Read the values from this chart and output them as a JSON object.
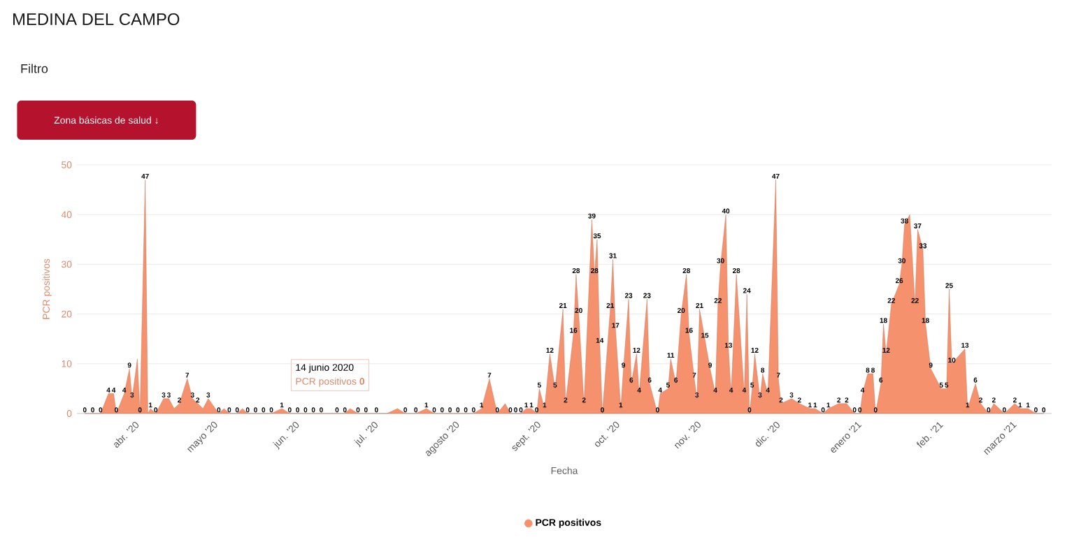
{
  "chart_data": {
    "type": "area",
    "title": "MEDINA DEL CAMPO",
    "xlabel": "Fecha",
    "ylabel": "PCR positivos",
    "annotations": [
      "Filtro",
      "Zona básicas de salud ↓",
      "14 junio 2020",
      "PCR positivos **0**"
    ],
    "x": [
      "2020-03-13",
      "2020-03-16",
      "2020-03-19",
      "2020-03-22",
      "2020-03-24",
      "2020-03-25",
      "2020-03-28",
      "2020-03-30",
      "2020-03-31",
      "2020-04-02",
      "2020-04-03",
      "2020-04-05",
      "2020-04-06",
      "2020-04-07",
      "2020-04-09",
      "2020-04-12",
      "2020-04-14",
      "2020-04-16",
      "2020-04-18",
      "2020-04-21",
      "2020-04-23",
      "2020-04-25",
      "2020-04-27",
      "2020-04-29",
      "2020-05-03",
      "2020-05-05",
      "2020-05-07",
      "2020-05-10",
      "2020-05-12",
      "2020-05-14",
      "2020-05-17",
      "2020-05-20",
      "2020-05-23",
      "2020-05-27",
      "2020-05-30",
      "2020-06-02",
      "2020-06-05",
      "2020-06-08",
      "2020-06-11",
      "2020-06-14",
      "2020-06-17",
      "2020-06-20",
      "2020-06-22",
      "2020-06-25",
      "2020-06-28",
      "2020-07-02",
      "2020-07-06",
      "2020-07-10",
      "2020-07-13",
      "2020-07-17",
      "2020-07-21",
      "2020-07-24",
      "2020-07-27",
      "2020-07-30",
      "2020-08-02",
      "2020-08-05",
      "2020-08-08",
      "2020-08-11",
      "2020-08-14",
      "2020-08-17",
      "2020-08-20",
      "2020-08-22",
      "2020-08-24",
      "2020-08-26",
      "2020-08-28",
      "2020-08-30",
      "2020-09-01",
      "2020-09-02",
      "2020-09-04",
      "2020-09-06",
      "2020-09-08",
      "2020-09-11",
      "2020-09-12",
      "2020-09-15",
      "2020-09-16",
      "2020-09-17",
      "2020-09-19",
      "2020-09-22",
      "2020-09-23",
      "2020-09-24",
      "2020-09-25",
      "2020-09-26",
      "2020-09-29",
      "2020-09-30",
      "2020-10-01",
      "2020-10-03",
      "2020-10-04",
      "2020-10-06",
      "2020-10-07",
      "2020-10-09",
      "2020-10-10",
      "2020-10-13",
      "2020-10-14",
      "2020-10-17",
      "2020-10-18",
      "2020-10-21",
      "2020-10-22",
      "2020-10-24",
      "2020-10-26",
      "2020-10-28",
      "2020-10-29",
      "2020-10-31",
      "2020-11-01",
      "2020-11-02",
      "2020-11-04",
      "2020-11-06",
      "2020-11-08",
      "2020-11-09",
      "2020-11-10",
      "2020-11-12",
      "2020-11-13",
      "2020-11-14",
      "2020-11-16",
      "2020-11-19",
      "2020-11-20",
      "2020-11-21",
      "2020-11-22",
      "2020-11-23",
      "2020-11-25",
      "2020-11-26",
      "2020-11-28",
      "2020-12-01",
      "2020-12-02",
      "2020-12-03",
      "2020-12-07",
      "2020-12-10",
      "2020-12-14",
      "2020-12-16",
      "2020-12-19",
      "2020-12-21",
      "2020-12-25",
      "2020-12-28",
      "2020-12-31",
      "2021-01-02",
      "2021-01-03",
      "2021-01-05",
      "2021-01-07",
      "2021-01-08",
      "2021-01-10",
      "2021-01-11",
      "2021-01-12",
      "2021-01-14",
      "2021-01-17",
      "2021-01-18",
      "2021-01-19",
      "2021-01-21",
      "2021-01-23",
      "2021-01-24",
      "2021-01-26",
      "2021-01-27",
      "2021-01-29",
      "2021-02-02",
      "2021-02-04",
      "2021-02-05",
      "2021-02-06",
      "2021-02-11",
      "2021-02-12",
      "2021-02-15",
      "2021-02-17",
      "2021-02-20",
      "2021-02-22",
      "2021-02-26",
      "2021-03-02",
      "2021-03-04",
      "2021-03-07",
      "2021-03-10",
      "2021-03-13"
    ],
    "series": [
      {
        "name": "PCR positivos",
        "color": "#f6916d",
        "values": [
          0,
          0,
          0,
          4,
          4,
          0,
          4,
          9,
          3,
          11,
          0,
          47,
          0,
          1,
          0,
          3,
          3,
          1,
          2,
          7,
          3,
          2,
          1,
          3,
          0,
          1,
          0,
          0,
          1,
          0,
          0,
          0,
          0,
          1,
          0,
          0,
          0,
          0,
          0,
          0,
          0,
          0,
          1,
          0,
          0,
          0,
          0,
          1,
          0,
          0,
          1,
          0,
          0,
          0,
          0,
          0,
          0,
          1,
          7,
          0,
          2,
          0,
          0,
          0,
          1,
          1,
          0,
          5,
          1,
          12,
          5,
          21,
          2,
          16,
          28,
          20,
          2,
          39,
          28,
          35,
          14,
          0,
          21,
          31,
          17,
          1,
          9,
          23,
          6,
          12,
          4,
          23,
          6,
          0,
          4,
          5,
          11,
          6,
          20,
          28,
          16,
          7,
          3,
          21,
          15,
          9,
          4,
          22,
          30,
          40,
          13,
          4,
          28,
          4,
          24,
          0,
          5,
          12,
          3,
          8,
          4,
          47,
          7,
          2,
          3,
          2,
          1,
          1,
          0,
          1,
          2,
          2,
          0,
          0,
          4,
          8,
          8,
          0,
          6,
          18,
          12,
          22,
          26,
          30,
          38,
          40,
          22,
          37,
          33,
          18,
          9,
          5,
          5,
          25,
          10,
          13,
          1,
          6,
          2,
          0,
          2,
          0,
          2,
          1,
          1,
          0,
          0
        ],
        "value_labels": [
          "0",
          "0",
          "0",
          "4",
          "4",
          "0",
          "4",
          "9",
          "3",
          null,
          "0",
          "47",
          null,
          "1",
          "0",
          "3",
          "3",
          null,
          "2",
          "7",
          "3",
          "2",
          null,
          "3",
          "0",
          null,
          "0",
          "0",
          null,
          "0",
          "0",
          "0",
          "0",
          "1",
          "0",
          "0",
          "0",
          "0",
          "0",
          null,
          "0",
          "0",
          null,
          "0",
          "0",
          "0",
          null,
          null,
          "0",
          "0",
          "1",
          "0",
          "0",
          "0",
          "0",
          "0",
          "0",
          "1",
          "7",
          "0",
          null,
          "0",
          "0",
          "0",
          "1",
          "1",
          "0",
          "5",
          "1",
          "12",
          "5",
          "21",
          "2",
          "16",
          "28",
          "20",
          "2",
          "39",
          "28",
          "35",
          "14",
          "0",
          "21",
          "31",
          "17",
          "1",
          "9",
          "23",
          "6",
          "12",
          "4",
          "23",
          "6",
          "0",
          "4",
          "5",
          "11",
          "6",
          "20",
          "28",
          "16",
          "7",
          "3",
          "21",
          "15",
          "9",
          "4",
          "22",
          "30",
          "40",
          "13",
          "4",
          "28",
          "4",
          "24",
          "0",
          "5",
          "12",
          "3",
          "8",
          "4",
          "47",
          "7",
          "2",
          "3",
          "2",
          "1",
          "1",
          "0",
          "1",
          "2",
          "2",
          "0",
          "0",
          "4",
          "8",
          "8",
          "0",
          "6",
          "18",
          "12",
          "22",
          "26",
          "30",
          "38",
          null,
          "22",
          "37",
          "33",
          "18",
          "9",
          "5",
          "5",
          "25",
          "10",
          "13",
          "1",
          "6",
          "2",
          "0",
          "2",
          "0",
          "2",
          "1",
          "1",
          "0",
          "0"
        ]
      }
    ],
    "xlim": [
      "2020-03-10",
      "2021-03-16"
    ],
    "xticks": [
      {
        "value": "2020-04-01",
        "label": "abr. '20"
      },
      {
        "value": "2020-05-01",
        "label": "mayo '20"
      },
      {
        "value": "2020-06-01",
        "label": "jun. '20"
      },
      {
        "value": "2020-07-01",
        "label": "jul. '20"
      },
      {
        "value": "2020-08-01",
        "label": "agosto '20"
      },
      {
        "value": "2020-09-01",
        "label": "sept. '20"
      },
      {
        "value": "2020-10-01",
        "label": "oct. '20"
      },
      {
        "value": "2020-11-01",
        "label": "nov. '20"
      },
      {
        "value": "2020-12-01",
        "label": "dic. '20"
      },
      {
        "value": "2021-01-01",
        "label": "enero '21"
      },
      {
        "value": "2021-02-01",
        "label": "feb. '21"
      },
      {
        "value": "2021-03-01",
        "label": "marzo '21"
      }
    ],
    "ylim": [
      0,
      50
    ],
    "yticks": [
      0,
      10,
      20,
      30,
      40,
      50
    ],
    "grid": "y",
    "legend": "bottom"
  }
}
